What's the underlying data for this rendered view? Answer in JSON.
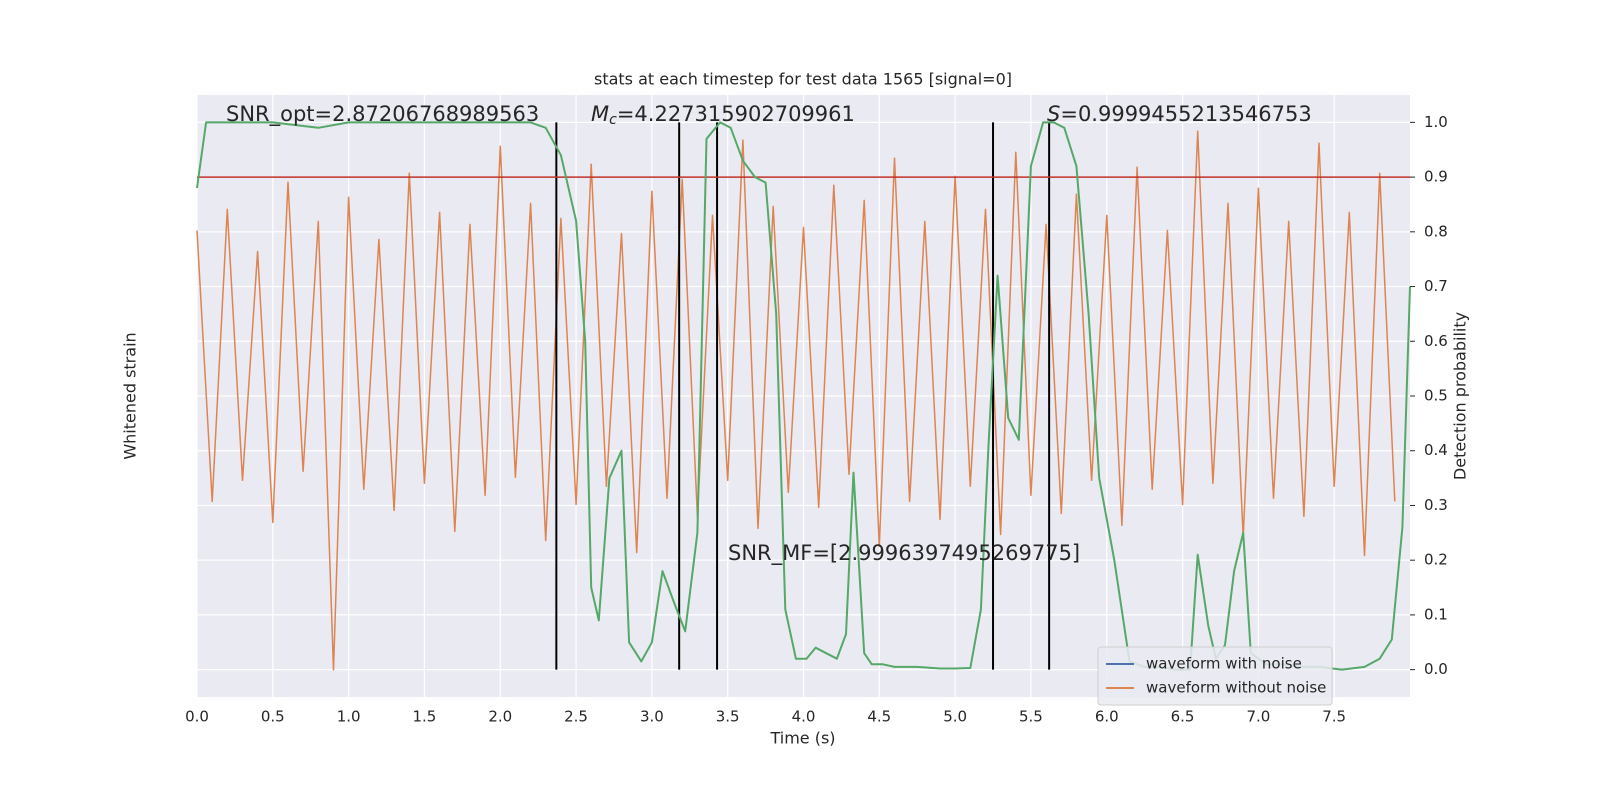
{
  "chart_data": {
    "type": "line",
    "title": "stats at each timestep for test data 1565 [signal=0]",
    "xlabel": "Time (s)",
    "ylabel": "Whitened strain",
    "y2label": "Detection probability",
    "xlim": [
      0,
      8
    ],
    "xticks": [
      {
        "value": 0,
        "label": "0.0"
      },
      0.5,
      {
        "value": 1,
        "label": "1.0"
      },
      1.5,
      {
        "value": 2,
        "label": "2.0"
      },
      2.5,
      {
        "value": 3,
        "label": "3.0"
      },
      3.5,
      {
        "value": 4,
        "label": "4.0"
      },
      4.5,
      {
        "value": 5,
        "label": "5.0"
      },
      5.5,
      {
        "value": 6,
        "label": "6.0"
      },
      6.5,
      {
        "value": 7,
        "label": "7.0"
      },
      7.5
    ],
    "ylim": [
      -1,
      1
    ],
    "y2lim": [
      -0.05,
      1.05
    ],
    "y2ticks": [
      {
        "value": 0,
        "label": "0.0"
      },
      0.1,
      0.2,
      0.3,
      0.4,
      0.5,
      0.6,
      0.7,
      0.8,
      0.9,
      {
        "value": 1,
        "label": "1.0"
      }
    ],
    "grid": true,
    "legend": "lower right",
    "threshold": 0.9,
    "threshold_color": "#c03028",
    "vlines": [
      2.37,
      3.18,
      3.43,
      5.25,
      5.62
    ],
    "annotations": [
      {
        "text": "SNR_opt=2.87206768989563"
      },
      {
        "symbol": "M",
        "subscript": "c",
        "text": "=4.227315902709961"
      },
      {
        "symbol": "S",
        "text": "=0.9999455213546753"
      },
      {
        "text": "SNR_MF=[2.9996397495269775]"
      }
    ],
    "series": [
      {
        "name": "waveform with noise",
        "color": "#4c72b0",
        "x": [
          0,
          0.1,
          0.2,
          0.3,
          0.4,
          0.5,
          0.6,
          0.7,
          0.8,
          0.9,
          1,
          1.1,
          1.2,
          1.3,
          1.4,
          1.5,
          1.6,
          1.7,
          1.8,
          1.9,
          2,
          2.1,
          2.2,
          2.3,
          2.4,
          2.5,
          2.6,
          2.7,
          2.8,
          2.9,
          3,
          3.1,
          3.2,
          3.3,
          3.4,
          3.5,
          3.6,
          3.7,
          3.8,
          3.9,
          4,
          4.1,
          4.2,
          4.3,
          4.4,
          4.5,
          4.6,
          4.7,
          4.8,
          4.9,
          5,
          5.1,
          5.2,
          5.3,
          5.4,
          5.5,
          5.6,
          5.7,
          5.8,
          5.9,
          6,
          6.1,
          6.2,
          6.3,
          6.4,
          6.5,
          6.6,
          6.7,
          6.8,
          6.9,
          7,
          7.1,
          7.2,
          7.3,
          7.4,
          7.5,
          7.6,
          7.7,
          7.8,
          7.9
        ],
        "values": [
          null,
          null,
          null,
          null,
          null,
          null,
          null,
          null,
          null,
          null,
          null,
          null,
          null,
          null,
          null,
          null,
          null,
          null,
          null,
          null,
          null,
          null,
          null,
          null,
          null,
          null,
          null,
          null,
          null,
          null,
          null,
          null,
          null,
          null,
          null,
          null,
          null,
          null,
          null,
          null,
          null,
          null,
          null,
          null,
          null,
          null,
          null,
          null,
          null,
          null,
          null,
          null,
          null,
          null,
          null,
          null,
          null,
          null,
          null,
          null,
          null,
          null,
          null,
          null,
          null,
          null,
          null,
          null,
          null,
          null,
          null,
          null,
          null,
          null,
          null,
          null,
          null,
          null,
          null,
          null
        ]
      },
      {
        "name": "waveform without noise",
        "color": "#dd8452",
        "x": [
          0,
          0.1,
          0.2,
          0.3,
          0.4,
          0.5,
          0.6,
          0.7,
          0.8,
          0.9,
          1,
          1.1,
          1.2,
          1.3,
          1.4,
          1.5,
          1.6,
          1.7,
          1.8,
          1.9,
          2,
          2.1,
          2.2,
          2.3,
          2.4,
          2.5,
          2.6,
          2.7,
          2.8,
          2.9,
          3,
          3.1,
          3.2,
          3.3,
          3.4,
          3.5,
          3.6,
          3.7,
          3.8,
          3.9,
          4,
          4.1,
          4.2,
          4.3,
          4.4,
          4.5,
          4.6,
          4.7,
          4.8,
          4.9,
          5,
          5.1,
          5.2,
          5.3,
          5.4,
          5.5,
          5.6,
          5.7,
          5.8,
          5.9,
          6,
          6.1,
          6.2,
          6.3,
          6.4,
          6.5,
          6.6,
          6.7,
          6.8,
          6.9,
          7,
          7.1,
          7.2,
          7.3,
          7.4,
          7.5,
          7.6,
          7.7,
          7.8,
          7.9
        ],
        "values": [
          0.55,
          -0.35,
          0.62,
          -0.28,
          0.48,
          -0.42,
          0.71,
          -0.25,
          0.58,
          -0.91,
          0.66,
          -0.31,
          0.52,
          -0.38,
          0.74,
          -0.29,
          0.61,
          -0.45,
          0.57,
          -0.33,
          0.83,
          -0.27,
          0.64,
          -0.48,
          0.59,
          -0.36,
          0.77,
          -0.3,
          0.54,
          -0.52,
          0.68,
          -0.34,
          0.72,
          -0.4,
          0.6,
          -0.28,
          0.85,
          -0.44,
          0.63,
          -0.32,
          0.56,
          -0.37,
          0.7,
          -0.26,
          0.65,
          -0.5,
          0.79,
          -0.35,
          0.58,
          -0.41,
          0.73,
          -0.3,
          0.62,
          -0.46,
          0.81,
          -0.33,
          0.57,
          -0.39,
          0.67,
          -0.28,
          0.6,
          -0.43,
          0.76,
          -0.31,
          0.55,
          -0.36,
          0.88,
          -0.29,
          0.64,
          -0.47,
          0.69,
          -0.34,
          0.58,
          -0.4,
          0.84,
          -0.3,
          0.61,
          -0.53,
          0.74,
          -0.35
        ]
      },
      {
        "color": "#55a868",
        "axis": "y2",
        "x": [
          0,
          0.06,
          0.2,
          0.5,
          0.8,
          1.0,
          1.5,
          2.0,
          2.2,
          2.3,
          2.4,
          2.5,
          2.56,
          2.6,
          2.65,
          2.72,
          2.8,
          2.85,
          2.93,
          3.0,
          3.07,
          3.15,
          3.22,
          3.3,
          3.36,
          3.45,
          3.52,
          3.6,
          3.68,
          3.75,
          3.82,
          3.88,
          3.95,
          4.02,
          4.08,
          4.15,
          4.22,
          4.28,
          4.33,
          4.4,
          4.45,
          4.52,
          4.6,
          4.75,
          4.9,
          5.0,
          5.1,
          5.17,
          5.22,
          5.28,
          5.35,
          5.42,
          5.5,
          5.58,
          5.65,
          5.72,
          5.8,
          5.88,
          5.95,
          6.05,
          6.15,
          6.25,
          6.35,
          6.45,
          6.55,
          6.6,
          6.67,
          6.72,
          6.78,
          6.84,
          6.9,
          6.95,
          7.05,
          7.15,
          7.3,
          7.4,
          7.55,
          7.7,
          7.8,
          7.88,
          7.95,
          8.0
        ],
        "values": [
          0.88,
          1.0,
          1.0,
          1.0,
          0.99,
          1.0,
          1.0,
          1.0,
          1.0,
          0.99,
          0.94,
          0.82,
          0.6,
          0.15,
          0.09,
          0.35,
          0.4,
          0.05,
          0.015,
          0.05,
          0.18,
          0.12,
          0.07,
          0.25,
          0.97,
          1.0,
          0.99,
          0.93,
          0.9,
          0.89,
          0.65,
          0.11,
          0.02,
          0.02,
          0.04,
          0.03,
          0.02,
          0.065,
          0.36,
          0.03,
          0.01,
          0.01,
          0.005,
          0.005,
          0.002,
          0.002,
          0.003,
          0.11,
          0.41,
          0.72,
          0.46,
          0.42,
          0.92,
          1.0,
          1.0,
          0.99,
          0.92,
          0.65,
          0.35,
          0.2,
          0.015,
          0.005,
          0.005,
          0,
          0,
          0.21,
          0.08,
          0.02,
          0.045,
          0.18,
          0.25,
          0.03,
          0.01,
          0.01,
          0.005,
          0.005,
          0,
          0.005,
          0.02,
          0.055,
          0.26,
          0.7
        ]
      }
    ]
  }
}
